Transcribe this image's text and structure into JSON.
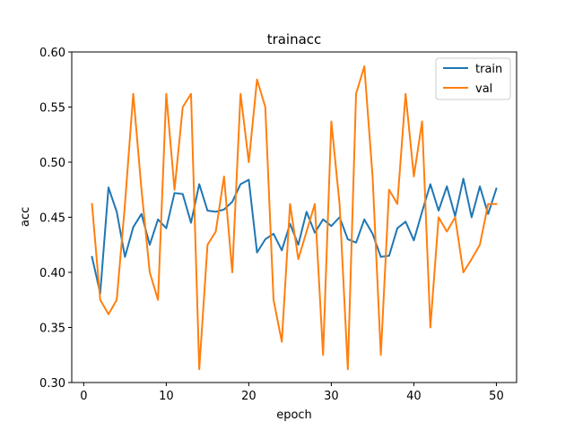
{
  "chart_data": {
    "type": "line",
    "title": "trainacc",
    "xlabel": "epoch",
    "ylabel": "acc",
    "xlim": [
      -1.45,
      52.45
    ],
    "ylim": [
      0.3,
      0.6
    ],
    "x_ticks": [
      0,
      10,
      20,
      30,
      40,
      50
    ],
    "x_tick_labels": [
      "0",
      "10",
      "20",
      "30",
      "40",
      "50"
    ],
    "y_ticks": [
      0.3,
      0.35,
      0.4,
      0.45,
      0.5,
      0.55,
      0.6
    ],
    "y_tick_labels": [
      "0.30",
      "0.35",
      "0.40",
      "0.45",
      "0.50",
      "0.55",
      "0.60"
    ],
    "grid": false,
    "legend_position": "top-right",
    "x": [
      1,
      2,
      3,
      4,
      5,
      6,
      7,
      8,
      9,
      10,
      11,
      12,
      13,
      14,
      15,
      16,
      17,
      18,
      19,
      20,
      21,
      22,
      23,
      24,
      25,
      26,
      27,
      28,
      29,
      30,
      31,
      32,
      33,
      34,
      35,
      36,
      37,
      38,
      39,
      40,
      41,
      42,
      43,
      44,
      45,
      46,
      47,
      48,
      49,
      50
    ],
    "series": [
      {
        "name": "train",
        "color": "#1f77b4",
        "values": [
          0.414,
          0.381,
          0.477,
          0.455,
          0.414,
          0.441,
          0.453,
          0.425,
          0.448,
          0.44,
          0.472,
          0.471,
          0.445,
          0.48,
          0.456,
          0.455,
          0.457,
          0.464,
          0.48,
          0.484,
          0.418,
          0.43,
          0.435,
          0.42,
          0.444,
          0.425,
          0.455,
          0.436,
          0.448,
          0.442,
          0.45,
          0.43,
          0.427,
          0.448,
          0.435,
          0.414,
          0.415,
          0.44,
          0.446,
          0.429,
          0.455,
          0.48,
          0.456,
          0.478,
          0.451,
          0.485,
          0.45,
          0.478,
          0.453,
          0.476
        ]
      },
      {
        "name": "val",
        "color": "#ff7f0e",
        "values": [
          0.462,
          0.375,
          0.362,
          0.375,
          0.462,
          0.562,
          0.475,
          0.4,
          0.375,
          0.562,
          0.475,
          0.55,
          0.562,
          0.312,
          0.425,
          0.437,
          0.487,
          0.4,
          0.562,
          0.5,
          0.575,
          0.55,
          0.375,
          0.337,
          0.462,
          0.412,
          0.437,
          0.462,
          0.325,
          0.537,
          0.462,
          0.312,
          0.562,
          0.587,
          0.487,
          0.325,
          0.475,
          0.462,
          0.562,
          0.487,
          0.537,
          0.35,
          0.45,
          0.437,
          0.45,
          0.4,
          0.412,
          0.425,
          0.462,
          0.462
        ]
      }
    ]
  }
}
